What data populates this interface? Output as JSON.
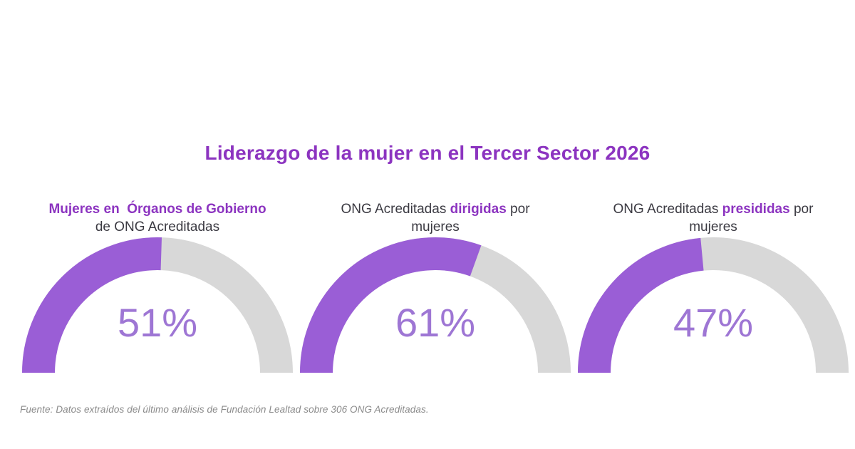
{
  "colors": {
    "highlight_purple": "#8c34c0",
    "arc_fill": "#9a5ed6",
    "arc_track": "#d8d8d8",
    "percent_text": "#9e76d4",
    "dark_text": "#3b3a42",
    "source_text": "#8a8a8a",
    "background": "#ffffff"
  },
  "chart_data": {
    "type": "gauge",
    "title": "Liderazgo de la mujer en el Tercer Sector 2026",
    "unit": "%",
    "layout": {
      "shape": "semicircle-donut",
      "start": "left",
      "max": 100,
      "count": 3
    },
    "gauges": [
      {
        "value": 51,
        "display": "51%",
        "label_text": "Mujeres en  Órganos de Gobierno de ONG Acreditadas",
        "label_lines": [
          [
            {
              "text": "Mujeres en  Órganos de Gobierno",
              "highlight": true
            }
          ],
          [
            {
              "text": "de ONG Acreditadas",
              "highlight": false
            }
          ]
        ]
      },
      {
        "value": 61,
        "display": "61%",
        "label_text": "ONG Acreditadas dirigidas por mujeres",
        "label_lines": [
          [
            {
              "text": "ONG Acreditadas ",
              "highlight": false
            },
            {
              "text": "dirigidas",
              "highlight": true
            },
            {
              "text": " por",
              "highlight": false
            }
          ],
          [
            {
              "text": "mujeres",
              "highlight": false
            }
          ]
        ]
      },
      {
        "value": 47,
        "display": "47%",
        "label_text": "ONG Acreditadas presididas por mujeres",
        "label_lines": [
          [
            {
              "text": "ONG Acreditadas ",
              "highlight": false
            },
            {
              "text": "presididas",
              "highlight": true
            },
            {
              "text": " por",
              "highlight": false
            }
          ],
          [
            {
              "text": "mujeres",
              "highlight": false
            }
          ]
        ]
      }
    ],
    "source": "Fuente: Datos extraídos del último análisis de Fundación Lealtad sobre 306 ONG Acreditadas."
  }
}
